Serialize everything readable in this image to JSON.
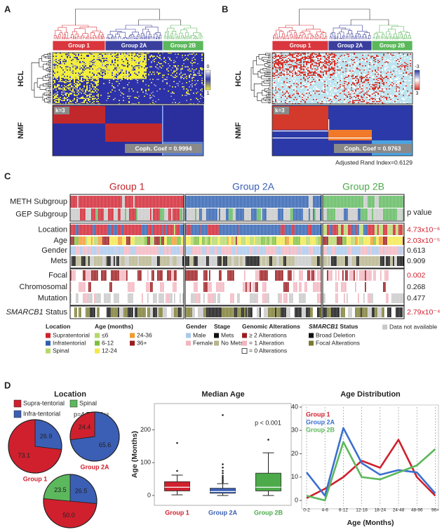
{
  "panels": {
    "A": {
      "letter": "A",
      "groups": [
        {
          "name": "Group 1",
          "color": "#d9363e"
        },
        {
          "name": "Group 2A",
          "color": "#3a3f9e"
        },
        {
          "name": "Group 2B",
          "color": "#5bb85b"
        }
      ],
      "hcl": "HCL",
      "nmf": "NMF",
      "k": "k=3",
      "coph": "Coph. Coef = 0.9994",
      "scale": [
        "0",
        "1"
      ]
    },
    "B": {
      "letter": "B",
      "groups": [
        {
          "name": "Group 1",
          "color": "#d9363e"
        },
        {
          "name": "Group 2A",
          "color": "#3a3f9e"
        },
        {
          "name": "Group 2B",
          "color": "#5bb85b"
        }
      ],
      "hcl": "HCL",
      "nmf": "NMF",
      "k": "k=3",
      "coph": "Coph. Coef = 0.9763",
      "scale": [
        "-3",
        "3"
      ],
      "ari": "Adjusted Rand Index=0.6129"
    },
    "C": {
      "letter": "C",
      "groups": [
        {
          "name": "Group 1",
          "color": "#c0272d"
        },
        {
          "name": "Group 2A",
          "color": "#3b5fb5"
        },
        {
          "name": "Group 2B",
          "color": "#4caa4a"
        }
      ],
      "p_header": "p value",
      "rows": [
        {
          "label": "METH Subgroup"
        },
        {
          "label": "GEP Subgroup"
        },
        {
          "label": "Location",
          "p": "4.73x10⁻⁶",
          "significant": true
        },
        {
          "label": "Age",
          "p": "2.03x10⁻⁵",
          "significant": true
        },
        {
          "label": "Gender",
          "p": "0.613",
          "significant": false
        },
        {
          "label": "Mets",
          "p": "0.909",
          "significant": false
        },
        {
          "label": "Focal",
          "p": "0.002",
          "significant": true
        },
        {
          "label": "Chromosomal",
          "p": "0.268",
          "significant": false
        },
        {
          "label": "Mutation",
          "p": "0.477",
          "significant": false
        },
        {
          "gene": "SMARCB1",
          "label": "Status",
          "p": "2.79x10⁻⁴",
          "significant": true
        }
      ],
      "legend": [
        {
          "title": "Location",
          "items": [
            {
              "label": "Supratentorial",
              "color": "#d0202e"
            },
            {
              "label": "Infratentorial",
              "color": "#2d5fb0"
            },
            {
              "label": "Spinal",
              "color": "#b5d86a"
            }
          ]
        },
        {
          "title": "Age (months)",
          "items": [
            {
              "label": "≤6",
              "color": "#b5d86a"
            },
            {
              "label": "6-12",
              "color": "#7fbf3f"
            },
            {
              "label": "12-24",
              "color": "#f2e84a"
            },
            {
              "label": "24-36",
              "color": "#f29a2e"
            },
            {
              "label": "36+",
              "color": "#9b1b1e"
            }
          ]
        },
        {
          "title": "Gender",
          "items": [
            {
              "label": "Male",
              "color": "#aac8ec"
            },
            {
              "label": "Female",
              "color": "#f2b5bf"
            }
          ]
        },
        {
          "title": "Stage",
          "items": [
            {
              "label": "Mets",
              "color": "#111111"
            },
            {
              "label": "No Mets",
              "color": "#b8b48c"
            }
          ]
        },
        {
          "title": "Genomic Alterations",
          "items": [
            {
              "label": "≥ 2 Alterations",
              "color": "#9b1b1e"
            },
            {
              "label": "= 1 Alteration",
              "color": "#f2b5bf"
            },
            {
              "label": "= 0  Alterations",
              "color": "#ffffff"
            }
          ]
        },
        {
          "gene": "SMARCB1",
          "title": "Status",
          "items": [
            {
              "label": "Broad Deletion",
              "color": "#111111"
            },
            {
              "label": "Focal Alterations",
              "color": "#7a7a30"
            }
          ]
        },
        {
          "items": [
            {
              "label": "Data not available",
              "color": "#c8c8c8"
            }
          ]
        }
      ]
    },
    "D": {
      "letter": "D"
    }
  },
  "chart_data": [
    {
      "type": "pie",
      "title": "Location",
      "categories": [
        "Supra-tentorial",
        "Infra-tentorial",
        "Spinal"
      ],
      "colors": [
        "#d0202e",
        "#3b5fb5",
        "#5cb85c"
      ],
      "annotation": "p=4.73x10⁻⁶",
      "pies": [
        {
          "name": "Group 1",
          "values": [
            73.1,
            26.9,
            null
          ]
        },
        {
          "name": "Group 2A",
          "values": [
            24.4,
            65.6,
            null
          ]
        },
        {
          "values": [
            50,
            26.5,
            23.5
          ],
          "value_labels": [
            "50.0",
            "26.5",
            "23.5"
          ]
        }
      ]
    },
    {
      "type": "box",
      "title": "Median Age",
      "y_label": "Age (Months)",
      "categories": [
        "Group 1",
        "Group 2A",
        "Group 2B"
      ],
      "colors": [
        "#d0202e",
        "#3b5fb5",
        "#4caa4a"
      ],
      "stats": [
        {
          "whislo": 2,
          "q1": 14,
          "med": 25,
          "q3": 42,
          "whishi": 62,
          "fliers": [
            75,
            160
          ]
        },
        {
          "whislo": 0,
          "q1": 7,
          "med": 12,
          "q3": 22,
          "whishi": 36,
          "fliers": [
            40,
            45,
            50,
            55,
            60,
            68,
            75,
            85,
            95,
            245
          ]
        },
        {
          "whislo": 0,
          "q1": 14,
          "med": 25,
          "q3": 68,
          "whishi": 130,
          "fliers": [
            170
          ]
        }
      ],
      "ylim": [
        -30,
        280
      ],
      "yticks": [
        0,
        100,
        200
      ],
      "annotation": "p < 0.001"
    },
    {
      "type": "line",
      "title": "Age Distribution",
      "x_label": "Age (Months)",
      "categories": [
        "0-2",
        "4-6",
        "6-12",
        "12-18",
        "18-24",
        "24-48",
        "48-96",
        "96+"
      ],
      "series": [
        {
          "name": "Group 1",
          "color": "#d0202e",
          "values": [
            1,
            5,
            10,
            17,
            14,
            26,
            10,
            2
          ]
        },
        {
          "name": "Group 2A",
          "color": "#3b6fd0",
          "values": [
            12,
            2,
            31,
            16,
            11,
            13,
            12,
            3
          ]
        },
        {
          "name": "Group 2B",
          "color": "#5cb85c",
          "values": [
            2,
            0,
            25,
            10,
            9,
            12,
            15,
            22
          ]
        }
      ],
      "ylim": [
        0,
        40
      ],
      "yticks": [
        0,
        10,
        20,
        30,
        40
      ],
      "grid": true
    }
  ]
}
